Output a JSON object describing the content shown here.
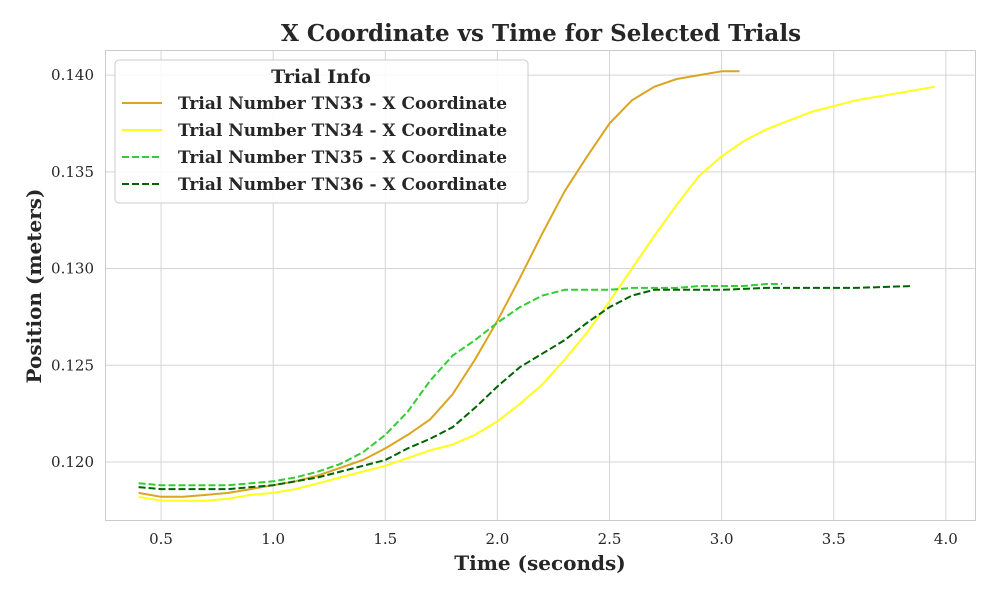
{
  "chart_data": {
    "type": "line",
    "title": "X Coordinate vs Time for Selected Trials",
    "xlabel": "Time (seconds)",
    "ylabel": "Position (meters)",
    "xlim": [
      0.25,
      4.13
    ],
    "ylim": [
      0.117,
      0.1413
    ],
    "xticks": [
      0.5,
      1.0,
      1.5,
      2.0,
      2.5,
      3.0,
      3.5,
      4.0
    ],
    "xtick_labels": [
      "0.5",
      "1.0",
      "1.5",
      "2.0",
      "2.5",
      "3.0",
      "3.5",
      "4.0"
    ],
    "yticks": [
      0.12,
      0.125,
      0.13,
      0.135,
      0.14
    ],
    "ytick_labels": [
      "0.120",
      "0.125",
      "0.130",
      "0.135",
      "0.140"
    ],
    "grid": true,
    "legend": {
      "title": "Trial Info",
      "placement": "top-left"
    },
    "series": [
      {
        "name": "Trial Number TN33 - X Coordinate",
        "color": "#DAA520",
        "linestyle": "solid",
        "x": [
          0.4,
          0.5,
          0.6,
          0.7,
          0.8,
          0.9,
          1.0,
          1.1,
          1.2,
          1.3,
          1.4,
          1.5,
          1.6,
          1.7,
          1.8,
          1.9,
          2.0,
          2.1,
          2.2,
          2.3,
          2.4,
          2.5,
          2.6,
          2.7,
          2.8,
          2.9,
          3.0,
          3.08
        ],
        "y": [
          0.1184,
          0.1182,
          0.1182,
          0.1183,
          0.1184,
          0.1186,
          0.1188,
          0.119,
          0.1193,
          0.1197,
          0.1201,
          0.1207,
          0.1214,
          0.1222,
          0.1235,
          0.1253,
          0.1273,
          0.1295,
          0.1318,
          0.134,
          0.1358,
          0.1375,
          0.1387,
          0.1394,
          0.1398,
          0.14,
          0.1402,
          0.1402
        ]
      },
      {
        "name": "Trial Number TN34 - X Coordinate",
        "color": "#FFFF1A",
        "linestyle": "solid",
        "x": [
          0.4,
          0.5,
          0.6,
          0.7,
          0.8,
          0.9,
          1.0,
          1.1,
          1.2,
          1.3,
          1.4,
          1.5,
          1.6,
          1.7,
          1.8,
          1.9,
          2.0,
          2.1,
          2.2,
          2.3,
          2.4,
          2.5,
          2.6,
          2.7,
          2.8,
          2.9,
          3.0,
          3.1,
          3.2,
          3.4,
          3.6,
          3.8,
          3.95
        ],
        "y": [
          0.1182,
          0.118,
          0.118,
          0.118,
          0.1181,
          0.1183,
          0.1184,
          0.1186,
          0.1189,
          0.1192,
          0.1195,
          0.1198,
          0.1202,
          0.1206,
          0.1209,
          0.1214,
          0.1221,
          0.123,
          0.124,
          0.1253,
          0.1267,
          0.1283,
          0.13,
          0.1317,
          0.1333,
          0.1348,
          0.1358,
          0.1366,
          0.1372,
          0.1381,
          0.1387,
          0.1391,
          0.1394
        ]
      },
      {
        "name": "Trial Number TN35 - X Coordinate",
        "color": "#32CD32",
        "linestyle": "dashed",
        "x": [
          0.4,
          0.5,
          0.6,
          0.7,
          0.8,
          0.9,
          1.0,
          1.1,
          1.2,
          1.3,
          1.4,
          1.5,
          1.6,
          1.7,
          1.8,
          1.9,
          2.0,
          2.1,
          2.2,
          2.3,
          2.4,
          2.5,
          2.6,
          2.7,
          2.8,
          2.9,
          3.0,
          3.1,
          3.2,
          3.27
        ],
        "y": [
          0.1189,
          0.1188,
          0.1188,
          0.1188,
          0.1188,
          0.1189,
          0.119,
          0.1192,
          0.1195,
          0.1199,
          0.1205,
          0.1214,
          0.1226,
          0.1242,
          0.1255,
          0.1263,
          0.1272,
          0.128,
          0.1286,
          0.1289,
          0.1289,
          0.1289,
          0.129,
          0.129,
          0.129,
          0.1291,
          0.1291,
          0.1291,
          0.1292,
          0.1292
        ]
      },
      {
        "name": "Trial Number TN36 - X Coordinate",
        "color": "#006400",
        "linestyle": "dashed",
        "x": [
          0.4,
          0.5,
          0.6,
          0.7,
          0.8,
          0.9,
          1.0,
          1.1,
          1.2,
          1.3,
          1.4,
          1.5,
          1.6,
          1.7,
          1.8,
          1.9,
          2.0,
          2.1,
          2.2,
          2.3,
          2.4,
          2.5,
          2.6,
          2.7,
          2.8,
          3.0,
          3.2,
          3.4,
          3.6,
          3.85
        ],
        "y": [
          0.1187,
          0.1186,
          0.1186,
          0.1186,
          0.1186,
          0.1187,
          0.1188,
          0.119,
          0.1192,
          0.1195,
          0.1198,
          0.1201,
          0.1207,
          0.1212,
          0.1218,
          0.1228,
          0.1239,
          0.1249,
          0.1256,
          0.1263,
          0.1272,
          0.128,
          0.1286,
          0.1289,
          0.1289,
          0.1289,
          0.129,
          0.129,
          0.129,
          0.1291
        ]
      }
    ]
  }
}
